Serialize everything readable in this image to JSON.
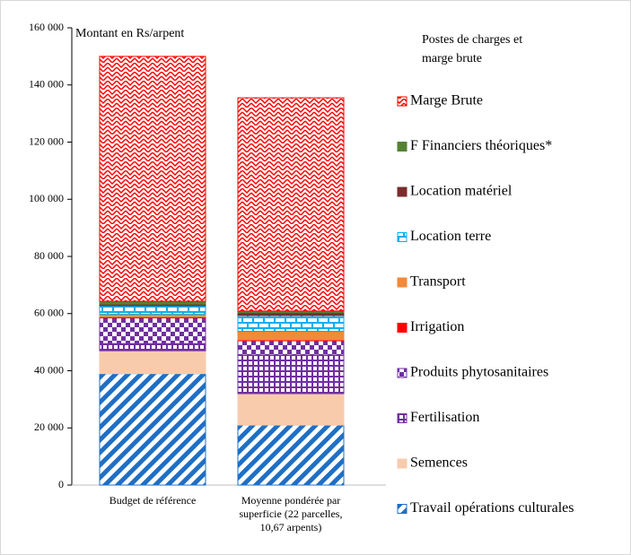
{
  "chart_data": {
    "type": "stacked_bar",
    "y_label": "Montant en Rs/arpent",
    "legend_title": "Postes de charges et\nmarge brute",
    "legend": "right",
    "categories": [
      "Budget de référence",
      "Moyenne pondérée par\nsuperficie (22 parcelles,\n10,67 arpents)"
    ],
    "ylim": [
      0,
      160000
    ],
    "yticks": [
      0,
      {
        "value": 20000,
        "label": "20 000"
      },
      {
        "value": 40000,
        "label": "40 000"
      },
      {
        "value": 60000,
        "label": "60 000"
      },
      {
        "value": 80000,
        "label": "80 000"
      },
      {
        "value": 100000,
        "label": "100 000"
      },
      {
        "value": 120000,
        "label": "120 000"
      },
      {
        "value": 140000,
        "label": "140 000"
      },
      {
        "value": 160000,
        "label": "160 000"
      }
    ],
    "grid": false,
    "series": [
      {
        "name": "Travail opérations culturales",
        "color": "#1f6fc5",
        "pattern": "diagonal",
        "values": [
          39000,
          21000
        ]
      },
      {
        "name": "Semences",
        "color": "#f8cbad",
        "pattern": "solid",
        "values": [
          8000,
          11000
        ]
      },
      {
        "name": "Fertilisation",
        "color": "#7030a0",
        "pattern": "grid",
        "values": [
          2500,
          13500
        ]
      },
      {
        "name": "Produits phytosanitaires",
        "color": "#7030a0",
        "pattern": "checker",
        "values": [
          9000,
          5000
        ]
      },
      {
        "name": "Irrigation",
        "color": "#ff0000",
        "pattern": "solid",
        "values": [
          300,
          300
        ]
      },
      {
        "name": "Transport",
        "color": "#f08a3c",
        "pattern": "solid",
        "values": [
          1000,
          3000
        ]
      },
      {
        "name": "Location terre",
        "color": "#00b0f0",
        "pattern": "brick",
        "values": [
          3000,
          5500
        ]
      },
      {
        "name": "Location matériel",
        "color": "#7b2c2c",
        "pattern": "solid",
        "values": [
          500,
          1000
        ]
      },
      {
        "name": "F Financiers théoriques*",
        "color": "#548235",
        "pattern": "solid",
        "values": [
          1000,
          600
        ]
      },
      {
        "name": "Marge Brute",
        "color": "#ff0000",
        "pattern": "zigzag",
        "values": [
          85700,
          74600
        ]
      }
    ]
  }
}
